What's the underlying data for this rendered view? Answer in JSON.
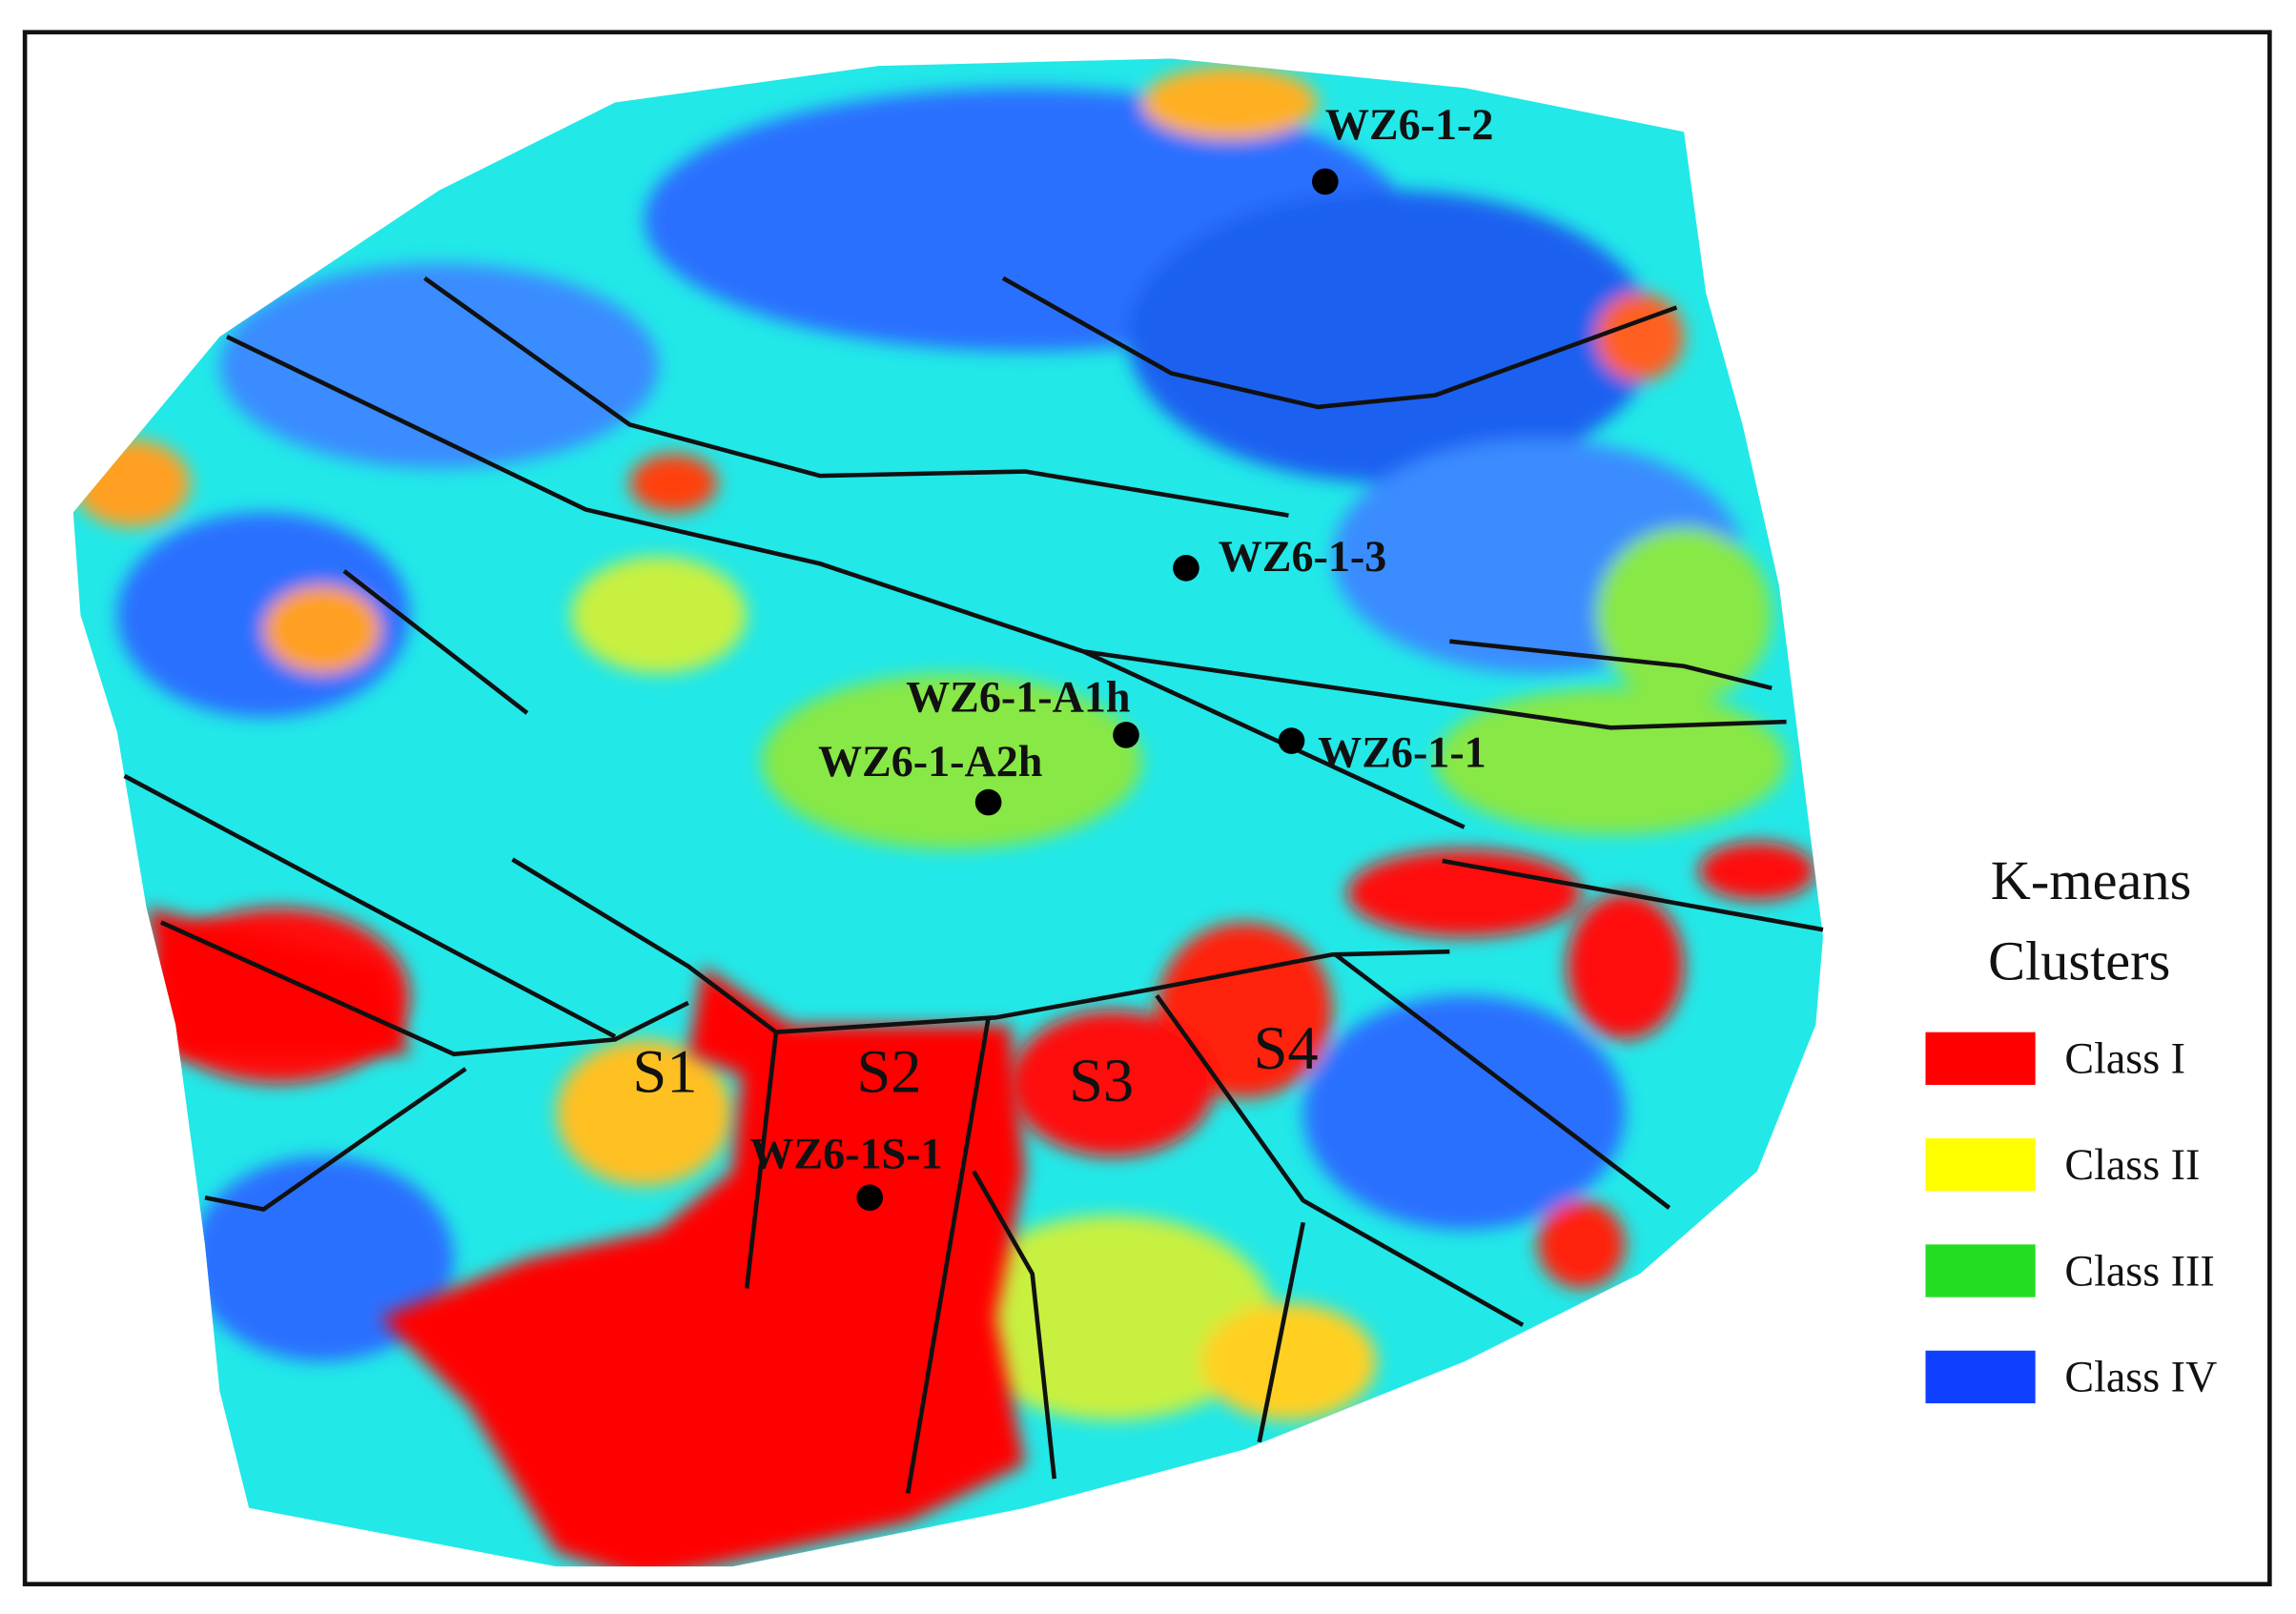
{
  "wells": [
    {
      "label": "WZ6-1-2"
    },
    {
      "label": "WZ6-1-3"
    },
    {
      "label": "WZ6-1-A1h"
    },
    {
      "label": "WZ6-1-A2h"
    },
    {
      "label": "WZ6-1-1"
    },
    {
      "label": "WZ6-1S-1"
    }
  ],
  "segments": [
    "S1",
    "S2",
    "S3",
    "S4"
  ],
  "legend": {
    "title": [
      "K-means",
      "Clusters"
    ],
    "items": [
      {
        "label": "Class I",
        "color": "#ff0000"
      },
      {
        "label": "Class II",
        "color": "#ffff00"
      },
      {
        "label": "Class III",
        "color": "#22dd22"
      },
      {
        "label": "Class IV",
        "color": "#1040ff"
      }
    ]
  }
}
